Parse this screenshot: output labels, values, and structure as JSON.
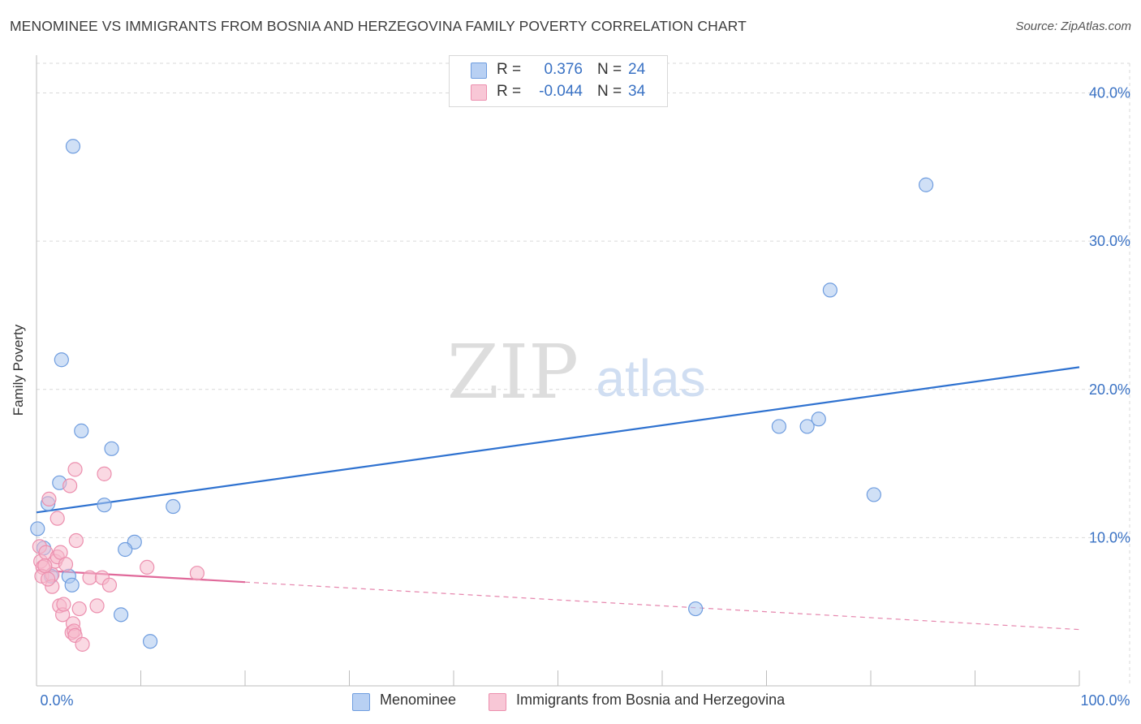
{
  "title": "MENOMINEE VS IMMIGRANTS FROM BOSNIA AND HERZEGOVINA FAMILY POVERTY CORRELATION CHART",
  "source": "Source: ZipAtlas.com",
  "watermark": {
    "zip": "ZIP",
    "atlas": "atlas"
  },
  "colors": {
    "blue_fill": "#a9c6ef",
    "blue_stroke": "#6f9ddf",
    "blue_line": "#2f72d0",
    "pink_fill": "#f5b9cc",
    "pink_stroke": "#ec8fae",
    "pink_line": "#e0699a",
    "tick_label": "#3a72c4",
    "grid": "#d9d9d9"
  },
  "legend": {
    "rows": [
      {
        "r_label": "R =",
        "r_value": "0.376",
        "n_label": "N =",
        "n_value": "24"
      },
      {
        "r_label": "R =",
        "r_value": "-0.044",
        "n_label": "N =",
        "n_value": "34"
      }
    ]
  },
  "bottom_legend": {
    "items": [
      "Menominee",
      "Immigrants from Bosnia and Herzegovina"
    ]
  },
  "chart_data": {
    "type": "scatter",
    "title": "MENOMINEE VS IMMIGRANTS FROM BOSNIA AND HERZEGOVINA FAMILY POVERTY CORRELATION CHART",
    "xlabel": "",
    "ylabel": "Family Poverty",
    "xlim": [
      0,
      100
    ],
    "ylim": [
      0,
      42
    ],
    "x_tick_labels": [
      "0.0%",
      "100.0%"
    ],
    "y_ticks": [
      10,
      20,
      30,
      40
    ],
    "y_tick_labels": [
      "10.0%",
      "20.0%",
      "30.0%",
      "40.0%"
    ],
    "grid": true,
    "series": [
      {
        "name": "Menominee",
        "r": 0.376,
        "n": 24,
        "trend": {
          "x": [
            0,
            100
          ],
          "y": [
            11.7,
            21.5
          ],
          "dashed_from_x": null
        },
        "points": [
          {
            "x": 0.1,
            "y": 10.6
          },
          {
            "x": 3.5,
            "y": 36.4
          },
          {
            "x": 2.4,
            "y": 22.0
          },
          {
            "x": 4.3,
            "y": 17.2
          },
          {
            "x": 7.2,
            "y": 16.0
          },
          {
            "x": 2.2,
            "y": 13.7
          },
          {
            "x": 1.1,
            "y": 12.3
          },
          {
            "x": 6.5,
            "y": 12.2
          },
          {
            "x": 13.1,
            "y": 12.1
          },
          {
            "x": 9.4,
            "y": 9.7
          },
          {
            "x": 8.5,
            "y": 9.2
          },
          {
            "x": 0.7,
            "y": 9.3
          },
          {
            "x": 1.4,
            "y": 7.4
          },
          {
            "x": 3.1,
            "y": 7.4
          },
          {
            "x": 3.4,
            "y": 6.8
          },
          {
            "x": 8.1,
            "y": 4.8
          },
          {
            "x": 10.9,
            "y": 3.0
          },
          {
            "x": 63.2,
            "y": 5.2
          },
          {
            "x": 85.3,
            "y": 33.8
          },
          {
            "x": 76.1,
            "y": 26.7
          },
          {
            "x": 71.2,
            "y": 17.5
          },
          {
            "x": 73.9,
            "y": 17.5
          },
          {
            "x": 75.0,
            "y": 18.0
          },
          {
            "x": 80.3,
            "y": 12.9
          }
        ]
      },
      {
        "name": "Immigrants from Bosnia and Herzegovina",
        "r": -0.044,
        "n": 34,
        "trend": {
          "x": [
            0,
            100
          ],
          "y": [
            7.8,
            3.8
          ],
          "dashed_from_x": 20
        },
        "points": [
          {
            "x": 0.3,
            "y": 9.4
          },
          {
            "x": 0.4,
            "y": 8.4
          },
          {
            "x": 0.6,
            "y": 8.0
          },
          {
            "x": 0.5,
            "y": 7.4
          },
          {
            "x": 0.9,
            "y": 9.0
          },
          {
            "x": 1.2,
            "y": 12.6
          },
          {
            "x": 1.5,
            "y": 7.5
          },
          {
            "x": 1.5,
            "y": 6.7
          },
          {
            "x": 1.8,
            "y": 8.4
          },
          {
            "x": 2.0,
            "y": 8.7
          },
          {
            "x": 2.0,
            "y": 11.3
          },
          {
            "x": 2.3,
            "y": 9.0
          },
          {
            "x": 2.2,
            "y": 5.4
          },
          {
            "x": 2.5,
            "y": 4.8
          },
          {
            "x": 2.6,
            "y": 5.5
          },
          {
            "x": 2.8,
            "y": 8.2
          },
          {
            "x": 3.2,
            "y": 13.5
          },
          {
            "x": 3.4,
            "y": 3.6
          },
          {
            "x": 3.5,
            "y": 4.2
          },
          {
            "x": 3.6,
            "y": 3.7
          },
          {
            "x": 3.7,
            "y": 3.4
          },
          {
            "x": 3.7,
            "y": 14.6
          },
          {
            "x": 3.8,
            "y": 9.8
          },
          {
            "x": 4.1,
            "y": 5.2
          },
          {
            "x": 4.4,
            "y": 2.8
          },
          {
            "x": 5.1,
            "y": 7.3
          },
          {
            "x": 5.8,
            "y": 5.4
          },
          {
            "x": 6.3,
            "y": 7.3
          },
          {
            "x": 6.5,
            "y": 14.3
          },
          {
            "x": 7.0,
            "y": 6.8
          },
          {
            "x": 10.6,
            "y": 8.0
          },
          {
            "x": 15.4,
            "y": 7.6
          },
          {
            "x": 1.1,
            "y": 7.2
          },
          {
            "x": 0.8,
            "y": 8.1
          }
        ]
      }
    ]
  }
}
